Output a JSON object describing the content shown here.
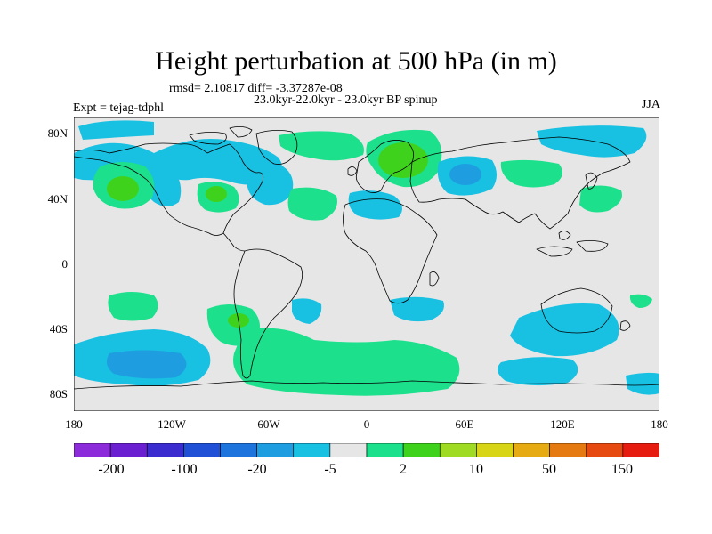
{
  "title": "Height perturbation at 500 hPa (in m)",
  "stats": "rmsd= 2.10817 diff= -3.37287e-08",
  "period": "23.0kyr-22.0kyr - 23.0kyr BP spinup",
  "experiment": "Expt = tejag-tdphl",
  "season": "JJA",
  "lat_ticks": [
    "80N",
    "40N",
    "0",
    "40S",
    "80S"
  ],
  "lon_ticks": [
    "180",
    "120W",
    "60W",
    "0",
    "60E",
    "120E",
    "180"
  ],
  "colorbar": {
    "colors": [
      "#8c2bd9",
      "#6a1fd0",
      "#3a2ccf",
      "#1f50d6",
      "#1d74dc",
      "#1e9ee0",
      "#18c0e2",
      "#e6e6e6",
      "#1de08c",
      "#3fd21d",
      "#9edb22",
      "#d8d416",
      "#e6aa12",
      "#e67a12",
      "#e64a10",
      "#e61c10"
    ],
    "labels": [
      "-200",
      "-100",
      "-20",
      "-5",
      "2",
      "10",
      "50",
      "150"
    ]
  },
  "colors": {
    "background": "#e6e6e6",
    "light_blue": "#18c0e2",
    "blue": "#1e9ee0",
    "light_green": "#1de08c",
    "green": "#3fd21d",
    "coast": "#000000"
  }
}
